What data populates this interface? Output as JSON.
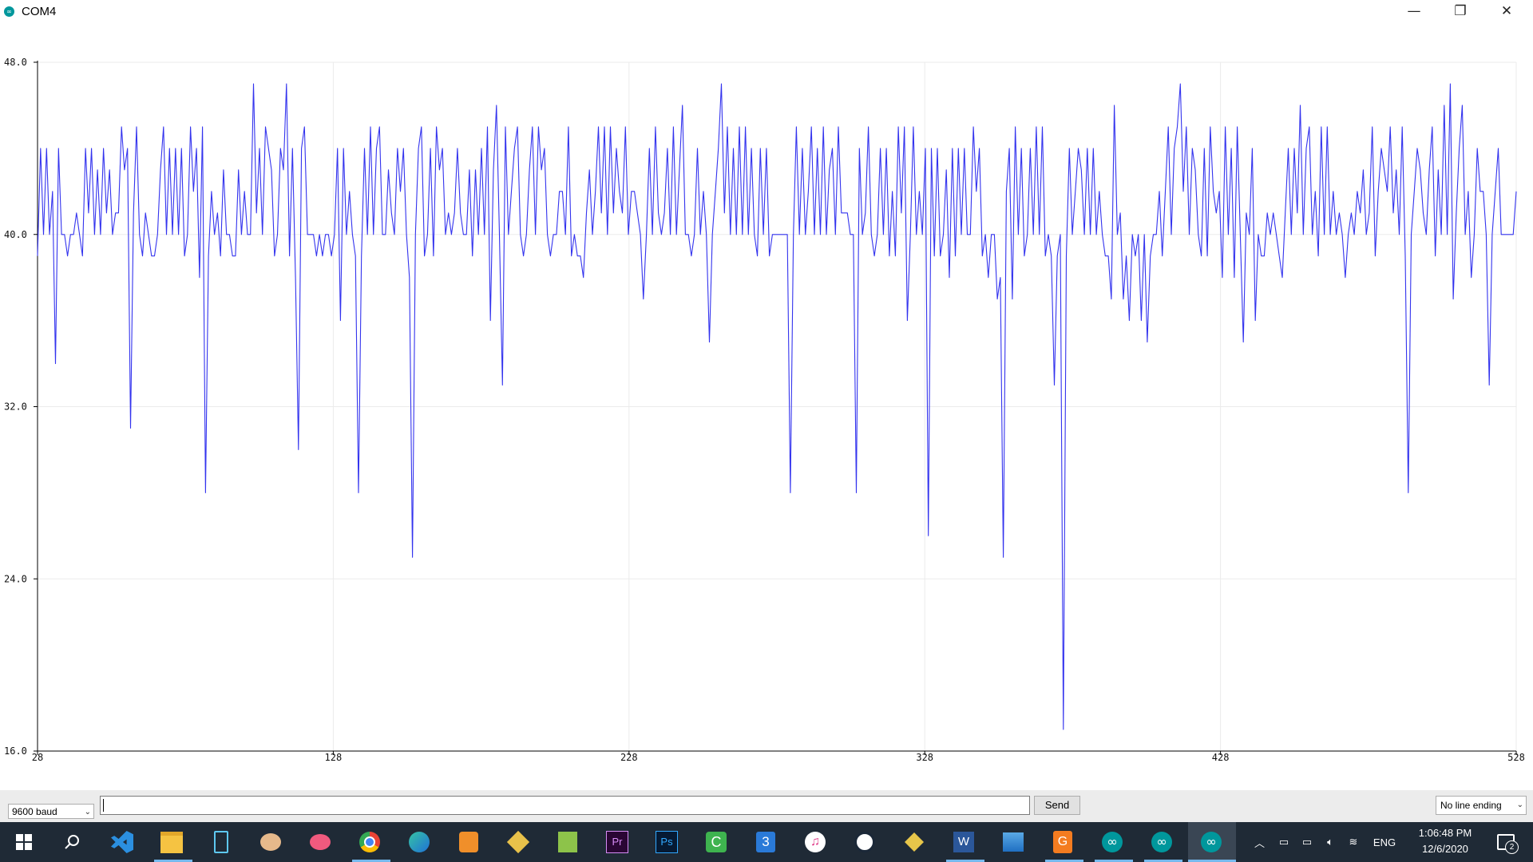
{
  "window": {
    "title": "COM4",
    "minimize_glyph": "—",
    "restore_glyph": "❐",
    "close_glyph": "✕"
  },
  "chart_data": {
    "type": "line",
    "title": "",
    "xlabel": "",
    "ylabel": "",
    "ylim": [
      16,
      48
    ],
    "xlim": [
      28,
      528
    ],
    "yticks": [
      "48.0",
      "40.0",
      "32.0",
      "24.0",
      "16.0"
    ],
    "xticks": [
      "28",
      "128",
      "228",
      "328",
      "428",
      "528"
    ],
    "grid": true,
    "series": [
      {
        "color": "#3333ee",
        "values": [
          39,
          44,
          40,
          44,
          40,
          42,
          34,
          44,
          40,
          40,
          39,
          40,
          40,
          41,
          40,
          39,
          44,
          41,
          44,
          40,
          43,
          40,
          44,
          41,
          43,
          40,
          41,
          41,
          45,
          43,
          44,
          31,
          41,
          45,
          40,
          39,
          41,
          40,
          39,
          39,
          40,
          43,
          45,
          40,
          44,
          40,
          44,
          40,
          44,
          39,
          40,
          45,
          42,
          44,
          38,
          45,
          28,
          39,
          42,
          40,
          41,
          39,
          43,
          40,
          40,
          39,
          39,
          43,
          40,
          42,
          40,
          40,
          47,
          41,
          44,
          40,
          45,
          44,
          43,
          39,
          40,
          44,
          43,
          47,
          39,
          44,
          38,
          30,
          44,
          45,
          40,
          40,
          40,
          39,
          40,
          39,
          40,
          40,
          39,
          40,
          44,
          36,
          44,
          40,
          42,
          40,
          39,
          28,
          39,
          44,
          40,
          45,
          40,
          44,
          45,
          40,
          40,
          43,
          41,
          40,
          44,
          42,
          44,
          40,
          38,
          25,
          40,
          44,
          45,
          39,
          40,
          44,
          39,
          45,
          43,
          44,
          40,
          41,
          40,
          41,
          44,
          41,
          40,
          40,
          43,
          39,
          43,
          40,
          44,
          40,
          45,
          36,
          43,
          46,
          40,
          33,
          45,
          40,
          42,
          44,
          45,
          40,
          39,
          40,
          43,
          45,
          40,
          45,
          43,
          44,
          40,
          39,
          40,
          40,
          42,
          42,
          40,
          45,
          39,
          40,
          39,
          39,
          38,
          41,
          43,
          40,
          42,
          45,
          41,
          45,
          40,
          45,
          41,
          44,
          42,
          41,
          45,
          40,
          42,
          42,
          41,
          40,
          37,
          40,
          44,
          40,
          45,
          41,
          40,
          41,
          44,
          40,
          45,
          40,
          43,
          46,
          40,
          40,
          39,
          40,
          44,
          40,
          42,
          40,
          35,
          40,
          42,
          44,
          47,
          41,
          45,
          40,
          44,
          40,
          45,
          40,
          45,
          40,
          44,
          40,
          39,
          44,
          40,
          44,
          39,
          40,
          40,
          40,
          40,
          40,
          40,
          28,
          40,
          45,
          40,
          44,
          40,
          42,
          45,
          40,
          44,
          40,
          45,
          40,
          43,
          44,
          40,
          45,
          41,
          41,
          41,
          40,
          40,
          28,
          44,
          40,
          41,
          45,
          40,
          39,
          40,
          44,
          40,
          44,
          39,
          42,
          39,
          45,
          41,
          45,
          36,
          40,
          45,
          40,
          42,
          40,
          44,
          26,
          44,
          39,
          44,
          39,
          40,
          43,
          38,
          44,
          39,
          44,
          40,
          44,
          40,
          40,
          45,
          42,
          44,
          39,
          40,
          38,
          40,
          40,
          37,
          38,
          25,
          42,
          44,
          37,
          45,
          40,
          44,
          39,
          40,
          44,
          40,
          45,
          40,
          45,
          39,
          40,
          39,
          33,
          39,
          40,
          17,
          39,
          44,
          40,
          42,
          44,
          43,
          40,
          44,
          40,
          44,
          40,
          42,
          40,
          39,
          39,
          37,
          46,
          40,
          41,
          37,
          39,
          36,
          40,
          39,
          40,
          36,
          40,
          35,
          39,
          40,
          40,
          42,
          39,
          42,
          45,
          40,
          44,
          45,
          47,
          42,
          45,
          40,
          44,
          43,
          40,
          39,
          44,
          39,
          45,
          42,
          41,
          42,
          38,
          45,
          40,
          44,
          38,
          45,
          40,
          35,
          41,
          40,
          44,
          36,
          40,
          39,
          39,
          41,
          40,
          41,
          40,
          39,
          38,
          41,
          44,
          40,
          44,
          41,
          46,
          40,
          44,
          45,
          40,
          42,
          39,
          45,
          40,
          45,
          40,
          42,
          40,
          41,
          40,
          38,
          40,
          41,
          40,
          42,
          41,
          43,
          40,
          41,
          45,
          39,
          42,
          44,
          43,
          42,
          45,
          41,
          43,
          40,
          45,
          39,
          28,
          40,
          42,
          44,
          43,
          41,
          40,
          43,
          45,
          39,
          43,
          40,
          46,
          40,
          47,
          37,
          41,
          44,
          46,
          40,
          42,
          38,
          40,
          44,
          42,
          42,
          40,
          33,
          40,
          42,
          44,
          40,
          40,
          40,
          40,
          40,
          42
        ]
      }
    ]
  },
  "controls": {
    "baud": "9600 baud",
    "input_value": "",
    "send_label": "Send",
    "line_ending": "No line ending"
  },
  "taskbar": {
    "lang": "ENG",
    "time": "1:06:48 PM",
    "date": "12/6/2020",
    "notification_count": "2"
  }
}
